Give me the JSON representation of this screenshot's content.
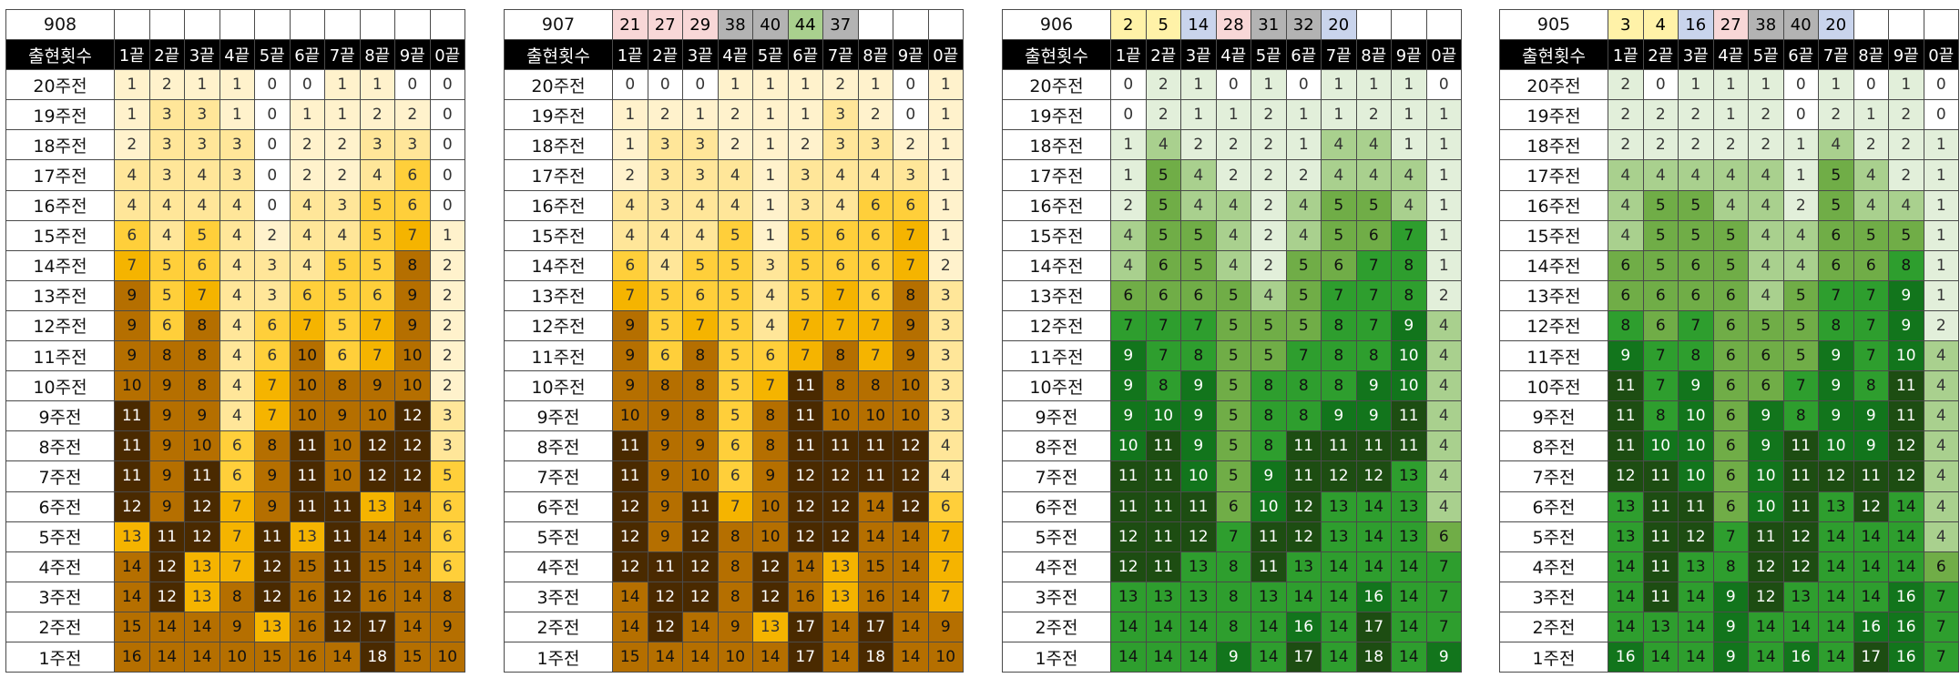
{
  "header_label": "출현횟수",
  "column_labels": [
    "1끝",
    "2끝",
    "3끝",
    "4끝",
    "5끝",
    "6끝",
    "7끝",
    "8끝",
    "9끝",
    "0끝"
  ],
  "row_labels": [
    "20주전",
    "19주전",
    "18주전",
    "17주전",
    "16주전",
    "15주전",
    "14주전",
    "13주전",
    "12주전",
    "11주전",
    "10주전",
    "9주전",
    "8주전",
    "7주전",
    "6주전",
    "5주전",
    "4주전",
    "3주전",
    "2주전",
    "1주전"
  ],
  "tables": [
    {
      "round": "908",
      "theme": "yellow",
      "winning_numbers": [],
      "counts": [
        [
          1,
          2,
          1,
          1,
          0,
          0,
          1,
          1,
          0,
          0
        ],
        [
          1,
          3,
          3,
          1,
          0,
          1,
          1,
          2,
          2,
          0
        ],
        [
          2,
          3,
          3,
          3,
          0,
          2,
          2,
          3,
          3,
          0
        ],
        [
          4,
          3,
          4,
          3,
          0,
          2,
          2,
          4,
          6,
          0
        ],
        [
          4,
          4,
          4,
          4,
          0,
          4,
          3,
          5,
          6,
          0
        ],
        [
          6,
          4,
          5,
          4,
          2,
          4,
          4,
          5,
          7,
          1
        ],
        [
          7,
          5,
          6,
          4,
          3,
          4,
          5,
          5,
          8,
          2
        ],
        [
          9,
          5,
          7,
          4,
          3,
          6,
          5,
          6,
          9,
          2
        ],
        [
          9,
          6,
          8,
          4,
          6,
          7,
          5,
          7,
          9,
          2
        ],
        [
          9,
          8,
          8,
          4,
          6,
          10,
          6,
          7,
          10,
          2
        ],
        [
          10,
          9,
          8,
          4,
          7,
          10,
          8,
          9,
          10,
          2
        ],
        [
          11,
          9,
          9,
          4,
          7,
          10,
          9,
          10,
          12,
          3
        ],
        [
          11,
          9,
          10,
          6,
          8,
          11,
          10,
          12,
          12,
          3
        ],
        [
          11,
          9,
          11,
          6,
          9,
          11,
          10,
          12,
          12,
          5
        ],
        [
          12,
          9,
          12,
          7,
          9,
          11,
          11,
          13,
          14,
          6
        ],
        [
          13,
          11,
          12,
          7,
          11,
          13,
          11,
          14,
          14,
          6
        ],
        [
          14,
          12,
          13,
          7,
          12,
          15,
          11,
          15,
          14,
          6
        ],
        [
          14,
          12,
          13,
          8,
          12,
          16,
          12,
          16,
          14,
          8
        ],
        [
          15,
          14,
          14,
          9,
          13,
          16,
          12,
          17,
          14,
          9
        ],
        [
          16,
          14,
          14,
          10,
          15,
          16,
          14,
          18,
          15,
          10
        ]
      ]
    },
    {
      "round": "907",
      "theme": "yellow",
      "winning_numbers": [
        {
          "value": "21",
          "color": "#f8d7d7"
        },
        {
          "value": "27",
          "color": "#f8d7d7"
        },
        {
          "value": "29",
          "color": "#f8d7d7"
        },
        {
          "value": "38",
          "color": "#b3b3b3"
        },
        {
          "value": "40",
          "color": "#b3b3b3"
        },
        {
          "value": "44",
          "color": "#a9d08e"
        },
        {
          "value": "37",
          "color": "#b3b3b3"
        }
      ],
      "counts": [
        [
          0,
          0,
          0,
          1,
          1,
          1,
          2,
          1,
          0,
          1
        ],
        [
          1,
          2,
          1,
          2,
          1,
          1,
          3,
          2,
          0,
          1
        ],
        [
          1,
          3,
          3,
          2,
          1,
          2,
          3,
          3,
          2,
          1
        ],
        [
          2,
          3,
          3,
          4,
          1,
          3,
          4,
          4,
          3,
          1
        ],
        [
          4,
          3,
          4,
          4,
          1,
          3,
          4,
          6,
          6,
          1
        ],
        [
          4,
          4,
          4,
          5,
          1,
          5,
          6,
          6,
          7,
          1
        ],
        [
          6,
          4,
          5,
          5,
          3,
          5,
          6,
          6,
          7,
          2
        ],
        [
          7,
          5,
          6,
          5,
          4,
          5,
          7,
          6,
          8,
          3
        ],
        [
          9,
          5,
          7,
          5,
          4,
          7,
          7,
          7,
          9,
          3
        ],
        [
          9,
          6,
          8,
          5,
          6,
          7,
          8,
          7,
          9,
          3
        ],
        [
          9,
          8,
          8,
          5,
          7,
          11,
          8,
          8,
          10,
          3
        ],
        [
          10,
          9,
          8,
          5,
          8,
          11,
          10,
          10,
          10,
          3
        ],
        [
          11,
          9,
          9,
          6,
          8,
          11,
          11,
          11,
          12,
          4
        ],
        [
          11,
          9,
          10,
          6,
          9,
          12,
          12,
          11,
          12,
          4
        ],
        [
          12,
          9,
          11,
          7,
          10,
          12,
          12,
          14,
          12,
          6
        ],
        [
          12,
          9,
          12,
          8,
          10,
          12,
          12,
          14,
          14,
          7
        ],
        [
          12,
          11,
          12,
          8,
          12,
          14,
          13,
          15,
          14,
          7
        ],
        [
          14,
          12,
          12,
          8,
          12,
          16,
          13,
          16,
          14,
          7
        ],
        [
          14,
          12,
          14,
          9,
          13,
          17,
          14,
          17,
          14,
          9
        ],
        [
          15,
          14,
          14,
          10,
          14,
          17,
          14,
          18,
          14,
          10
        ]
      ]
    },
    {
      "round": "906",
      "theme": "green",
      "winning_numbers": [
        {
          "value": "2",
          "color": "#fff2a8"
        },
        {
          "value": "5",
          "color": "#fff2a8"
        },
        {
          "value": "14",
          "color": "#c9d4ec"
        },
        {
          "value": "28",
          "color": "#f8d7d7"
        },
        {
          "value": "31",
          "color": "#b3b3b3"
        },
        {
          "value": "32",
          "color": "#b3b3b3"
        },
        {
          "value": "20",
          "color": "#c9d4ec"
        }
      ],
      "counts": [
        [
          0,
          2,
          1,
          0,
          1,
          0,
          1,
          1,
          1,
          0
        ],
        [
          0,
          2,
          1,
          1,
          2,
          1,
          1,
          2,
          1,
          1
        ],
        [
          1,
          4,
          2,
          2,
          2,
          1,
          4,
          4,
          1,
          1
        ],
        [
          1,
          5,
          4,
          2,
          2,
          2,
          4,
          4,
          4,
          1
        ],
        [
          2,
          5,
          4,
          4,
          2,
          4,
          5,
          5,
          4,
          1
        ],
        [
          4,
          5,
          5,
          4,
          2,
          4,
          5,
          6,
          7,
          1
        ],
        [
          4,
          6,
          5,
          4,
          2,
          5,
          6,
          7,
          8,
          1
        ],
        [
          6,
          6,
          6,
          5,
          4,
          5,
          7,
          7,
          8,
          2
        ],
        [
          7,
          7,
          7,
          5,
          5,
          5,
          8,
          7,
          9,
          4
        ],
        [
          9,
          7,
          8,
          5,
          5,
          7,
          8,
          8,
          10,
          4
        ],
        [
          9,
          8,
          9,
          5,
          8,
          8,
          8,
          9,
          10,
          4
        ],
        [
          9,
          10,
          9,
          5,
          8,
          8,
          9,
          9,
          11,
          4
        ],
        [
          10,
          11,
          9,
          5,
          8,
          11,
          11,
          11,
          11,
          4
        ],
        [
          11,
          11,
          10,
          5,
          9,
          11,
          12,
          12,
          13,
          4
        ],
        [
          11,
          11,
          11,
          6,
          10,
          12,
          13,
          14,
          13,
          4
        ],
        [
          12,
          11,
          12,
          7,
          11,
          12,
          13,
          14,
          13,
          6
        ],
        [
          12,
          11,
          13,
          8,
          11,
          13,
          14,
          14,
          14,
          7
        ],
        [
          13,
          13,
          13,
          8,
          13,
          14,
          14,
          16,
          14,
          7
        ],
        [
          14,
          14,
          14,
          8,
          14,
          16,
          14,
          17,
          14,
          7
        ],
        [
          14,
          14,
          14,
          9,
          14,
          17,
          14,
          18,
          14,
          9
        ]
      ]
    },
    {
      "round": "905",
      "theme": "green",
      "winning_numbers": [
        {
          "value": "3",
          "color": "#fff2a8"
        },
        {
          "value": "4",
          "color": "#fff2a8"
        },
        {
          "value": "16",
          "color": "#c9d4ec"
        },
        {
          "value": "27",
          "color": "#f8d7d7"
        },
        {
          "value": "38",
          "color": "#b3b3b3"
        },
        {
          "value": "40",
          "color": "#b3b3b3"
        },
        {
          "value": "20",
          "color": "#c9d4ec"
        }
      ],
      "counts": [
        [
          2,
          0,
          1,
          1,
          1,
          0,
          1,
          0,
          1,
          0
        ],
        [
          2,
          2,
          2,
          1,
          2,
          0,
          2,
          1,
          2,
          0
        ],
        [
          2,
          2,
          2,
          2,
          2,
          1,
          4,
          2,
          2,
          1
        ],
        [
          4,
          4,
          4,
          4,
          4,
          1,
          5,
          4,
          2,
          1
        ],
        [
          4,
          5,
          5,
          4,
          4,
          2,
          5,
          4,
          4,
          1
        ],
        [
          4,
          5,
          5,
          5,
          4,
          4,
          6,
          5,
          5,
          1
        ],
        [
          6,
          5,
          6,
          5,
          4,
          4,
          6,
          6,
          8,
          1
        ],
        [
          6,
          6,
          6,
          6,
          4,
          5,
          7,
          7,
          9,
          1
        ],
        [
          8,
          6,
          7,
          6,
          5,
          5,
          8,
          7,
          9,
          2
        ],
        [
          9,
          7,
          8,
          6,
          6,
          5,
          9,
          7,
          10,
          4
        ],
        [
          11,
          7,
          9,
          6,
          6,
          7,
          9,
          8,
          11,
          4
        ],
        [
          11,
          8,
          10,
          6,
          9,
          8,
          9,
          9,
          11,
          4
        ],
        [
          11,
          10,
          10,
          6,
          9,
          11,
          10,
          9,
          12,
          4
        ],
        [
          12,
          11,
          10,
          6,
          10,
          11,
          12,
          11,
          12,
          4
        ],
        [
          13,
          11,
          11,
          6,
          10,
          11,
          13,
          12,
          14,
          4
        ],
        [
          13,
          11,
          12,
          7,
          11,
          12,
          14,
          14,
          14,
          4
        ],
        [
          14,
          11,
          13,
          8,
          12,
          12,
          14,
          14,
          14,
          6
        ],
        [
          14,
          11,
          14,
          9,
          12,
          13,
          14,
          14,
          16,
          7
        ],
        [
          14,
          13,
          14,
          9,
          14,
          14,
          14,
          16,
          16,
          7
        ],
        [
          16,
          14,
          14,
          9,
          14,
          16,
          14,
          17,
          16,
          7
        ]
      ]
    }
  ]
}
